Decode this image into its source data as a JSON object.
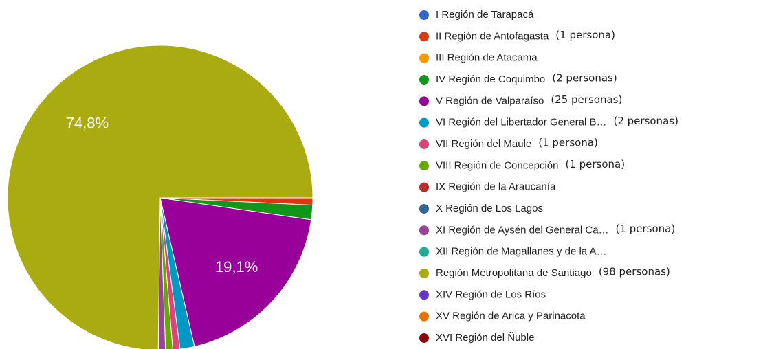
{
  "chart_data": {
    "type": "pie",
    "categories": [
      "I Región de Tarapacá",
      "II Región de Antofagasta",
      "III Región de Atacama",
      "IV Región de Coquimbo",
      "V Región de Valparaíso",
      "VI Región del Libertador General B…",
      "VII Región del Maule",
      "VIII Región de Concepción",
      "IX Región de la Araucanía",
      "X Región de Los Lagos",
      "XI Región de Aysén del General Ca…",
      "XII Región de Magallanes y de la A…",
      "Región Metropolitana de Santiago",
      "XIV Región de Los Ríos",
      "XV Región de Arica y Parinacota",
      "XVI Región del Ñuble"
    ],
    "values": [
      0,
      0.76,
      0,
      1.53,
      19.1,
      1.53,
      0.76,
      0.76,
      0,
      0,
      0.76,
      0,
      74.8,
      0,
      0,
      0
    ],
    "value_labels": [
      null,
      null,
      null,
      null,
      "19,1%",
      null,
      null,
      null,
      null,
      null,
      null,
      null,
      "74,8%",
      null,
      null,
      null
    ],
    "annotations": [
      null,
      "(1 persona)",
      null,
      "(2 personas)",
      "(25 personas)",
      "(2 personas)",
      "(1 persona)",
      "(1 persona)",
      null,
      null,
      "(1 persona)",
      null,
      "(98 personas)",
      null,
      null,
      null
    ],
    "colors": [
      "#3366cc",
      "#dc3912",
      "#ff9900",
      "#109618",
      "#990099",
      "#0099c6",
      "#dd4477",
      "#66aa00",
      "#b82e2e",
      "#316395",
      "#994499",
      "#22aa99",
      "#aaaa11",
      "#6633cc",
      "#e67300",
      "#8b0707"
    ]
  }
}
